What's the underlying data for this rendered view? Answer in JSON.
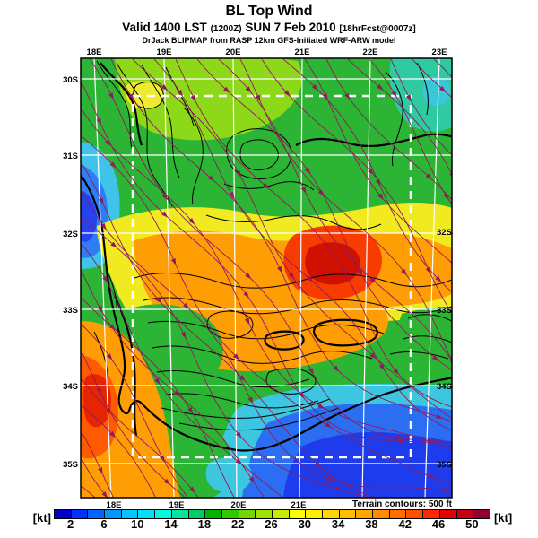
{
  "header": {
    "title": "BL Top Wind",
    "valid_prefix": "Valid 1400 LST",
    "valid_zulu": "(1200Z)",
    "valid_date": "SUN 7 Feb 2010",
    "valid_fcst": "[18hrFcst@0007z]",
    "model_line": "DrJack BLIPMAP from RASP 12km GFS-Initiated WRF-ARW model"
  },
  "map": {
    "top_axis_labels": [
      "18E",
      "19E",
      "20E",
      "21E",
      "22E",
      "23E"
    ],
    "bottom_axis_labels": [
      "18E",
      "19E",
      "20E",
      "21E"
    ],
    "left_axis_labels": [
      "30S",
      "31S",
      "32S",
      "33S",
      "34S",
      "35S"
    ],
    "right_axis_labels": [
      "32S",
      "33S",
      "34S",
      "35S"
    ],
    "terrain_note": "Terrain contours: 500 ft"
  },
  "colorbar": {
    "unit_left": "[kt]",
    "unit_right": "[kt]",
    "ticks": [
      "2",
      "6",
      "10",
      "14",
      "18",
      "22",
      "26",
      "30",
      "34",
      "38",
      "42",
      "46",
      "50"
    ],
    "colors": [
      "#0000c8",
      "#0032ff",
      "#0064ff",
      "#0096ff",
      "#00c8ff",
      "#00e1ff",
      "#00fae1",
      "#00e6a0",
      "#00cd69",
      "#00b400",
      "#32c800",
      "#77d500",
      "#a0e100",
      "#c8ed00",
      "#ffff00",
      "#ffed00",
      "#ffd700",
      "#ffbe00",
      "#ffa500",
      "#ff8c00",
      "#ff6e00",
      "#ff5000",
      "#ff2800",
      "#e60000",
      "#c80014",
      "#96002d"
    ]
  }
}
